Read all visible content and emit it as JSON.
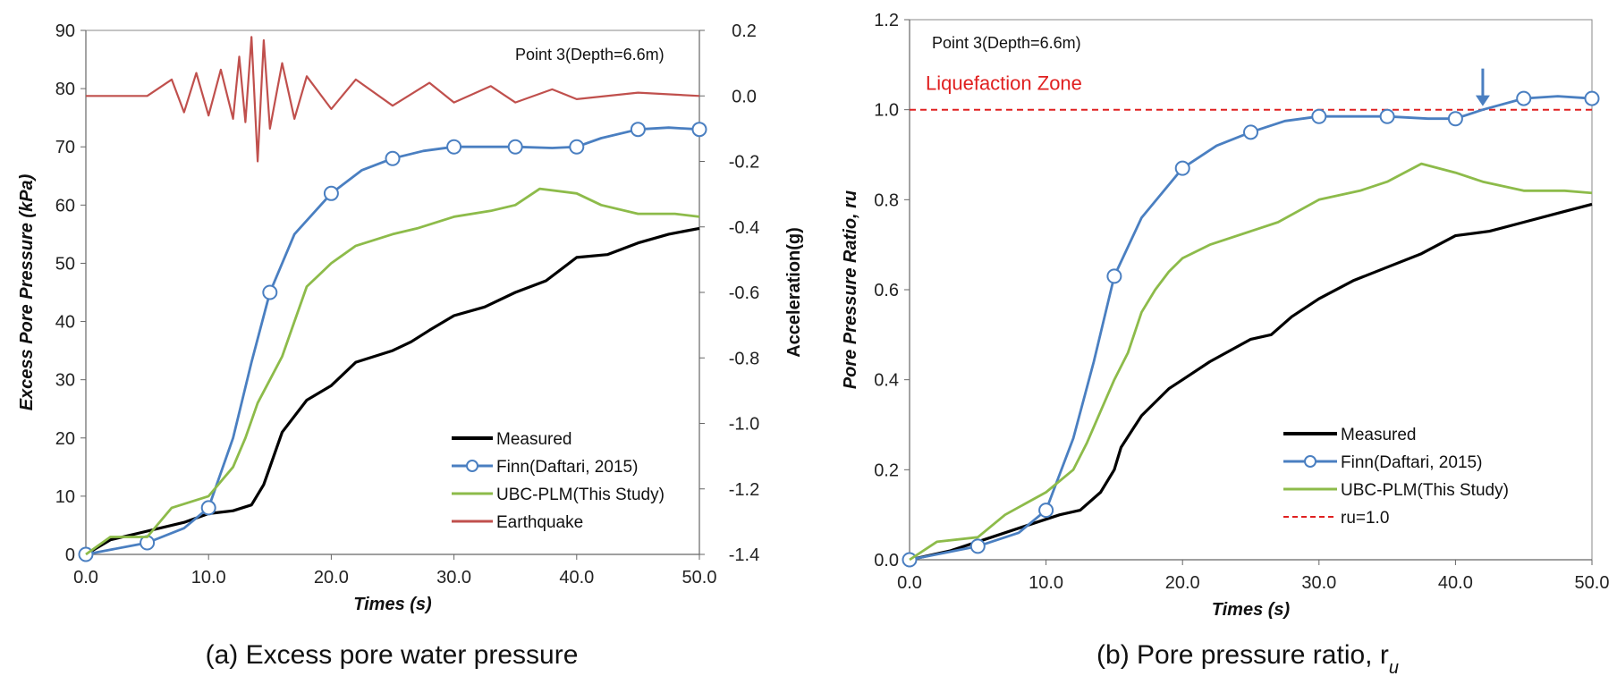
{
  "chart_data": [
    {
      "type": "line",
      "caption": "(a) Excess pore water pressure",
      "annotation": "Point 3(Depth=6.6m)",
      "xlabel": "Times (s)",
      "ylabel": "Excess Pore Pressure (kPa)",
      "y2label": "Acceleration(g)",
      "xlim": [
        0,
        50
      ],
      "ylim": [
        0,
        90
      ],
      "y2lim": [
        -1.4,
        0.2
      ],
      "x_ticks": [
        "0.0",
        "10.0",
        "20.0",
        "30.0",
        "40.0",
        "50.0"
      ],
      "y_ticks": [
        "0",
        "10",
        "20",
        "30",
        "40",
        "50",
        "60",
        "70",
        "80",
        "90"
      ],
      "y2_ticks": [
        "0.2",
        "0.0",
        "-0.2",
        "-0.4",
        "-0.6",
        "-0.8",
        "-1.0",
        "-1.2",
        "-1.4"
      ],
      "legend_position": "bottom-right",
      "series": [
        {
          "name": "Measured",
          "color": "#000000",
          "x": [
            0,
            2,
            5,
            8,
            10,
            12,
            13.5,
            14.5,
            15,
            16,
            18,
            20,
            22,
            25,
            26.5,
            28,
            30,
            32.5,
            35,
            37.5,
            40,
            42.5,
            45,
            47.5,
            50
          ],
          "y": [
            0,
            2.5,
            4,
            5.5,
            7,
            7.5,
            8.5,
            12,
            15,
            21,
            26.5,
            29,
            33,
            35,
            36.5,
            38.5,
            41,
            42.5,
            45,
            47,
            51,
            51.5,
            53.5,
            55,
            56
          ]
        },
        {
          "name": "Finn(Daftari, 2015)",
          "color": "#4a7fc1",
          "x": [
            0,
            5,
            8,
            10,
            12,
            13.5,
            15,
            17,
            20,
            22.5,
            25,
            27.5,
            30,
            35,
            38,
            40,
            42,
            45,
            47.5,
            50
          ],
          "y": [
            0,
            2,
            4.5,
            8,
            20,
            33,
            45,
            55,
            62,
            66,
            68,
            69.3,
            70,
            70,
            69.8,
            70,
            71.5,
            73,
            73.3,
            73
          ],
          "markers_x": [
            0,
            5,
            10,
            15,
            20,
            25,
            30,
            35,
            40,
            45,
            50
          ],
          "markers_y": [
            0,
            2,
            8,
            45,
            62,
            68,
            70,
            70,
            70,
            73,
            73
          ]
        },
        {
          "name": "UBC-PLM(This Study)",
          "color": "#8dbb4a",
          "x": [
            0,
            2,
            5,
            7,
            10,
            12,
            13,
            14,
            15,
            16,
            17,
            18,
            19,
            20,
            22,
            25,
            27,
            30,
            33,
            35,
            37,
            40,
            42,
            45,
            48,
            50
          ],
          "y": [
            0,
            3,
            3,
            8,
            10,
            15,
            20,
            26,
            30,
            34,
            40,
            46,
            48,
            50,
            53,
            55,
            56,
            58,
            59,
            60,
            62.8,
            62,
            60,
            58.5,
            58.5,
            58
          ]
        },
        {
          "name": "Earthquake",
          "color": "#c0504d",
          "axis": "y2",
          "x": [
            0,
            5,
            7,
            8,
            9,
            10,
            11,
            12,
            12.5,
            13,
            13.5,
            14,
            14.5,
            15,
            16,
            17,
            18,
            20,
            22,
            25,
            28,
            30,
            33,
            35,
            38,
            40,
            45,
            50
          ],
          "y": [
            0,
            0,
            0.05,
            -0.05,
            0.07,
            -0.06,
            0.08,
            -0.07,
            0.12,
            -0.08,
            0.18,
            -0.2,
            0.17,
            -0.1,
            0.1,
            -0.07,
            0.06,
            -0.04,
            0.05,
            -0.03,
            0.04,
            -0.02,
            0.03,
            -0.02,
            0.02,
            -0.01,
            0.01,
            0
          ]
        }
      ]
    },
    {
      "type": "line",
      "caption": "(b) Pore pressure ratio, r",
      "caption_sub": "u",
      "annotation": "Point 3(Depth=6.6m)",
      "zone_label": "Liquefaction Zone",
      "xlabel": "Times (s)",
      "ylabel": "Pore Pressure Ratio, ru",
      "xlim": [
        0,
        50
      ],
      "ylim": [
        0,
        1.2
      ],
      "x_ticks": [
        "0.0",
        "10.0",
        "20.0",
        "30.0",
        "40.0",
        "50.0"
      ],
      "y_ticks": [
        "0.0",
        "0.2",
        "0.4",
        "0.6",
        "0.8",
        "1.0",
        "1.2"
      ],
      "arrow_x": 42,
      "legend_position": "bottom-right",
      "series": [
        {
          "name": "Measured",
          "color": "#000000",
          "x": [
            0,
            3,
            6,
            9,
            11,
            12.5,
            14,
            15,
            15.5,
            17,
            19,
            20,
            22,
            25,
            26.5,
            28,
            30,
            32.5,
            35,
            37.5,
            40,
            42.5,
            45,
            47.5,
            50
          ],
          "y": [
            0,
            0.02,
            0.05,
            0.08,
            0.1,
            0.11,
            0.15,
            0.2,
            0.25,
            0.32,
            0.38,
            0.4,
            0.44,
            0.49,
            0.5,
            0.54,
            0.58,
            0.62,
            0.65,
            0.68,
            0.72,
            0.73,
            0.75,
            0.77,
            0.79
          ]
        },
        {
          "name": "Finn(Daftari, 2015)",
          "color": "#4a7fc1",
          "x": [
            0,
            5,
            8,
            10,
            12,
            13.5,
            15,
            17,
            20,
            22.5,
            25,
            27.5,
            30,
            35,
            38,
            40,
            42,
            45,
            47.5,
            50
          ],
          "y": [
            0,
            0.03,
            0.06,
            0.11,
            0.27,
            0.44,
            0.63,
            0.76,
            0.87,
            0.92,
            0.95,
            0.975,
            0.985,
            0.985,
            0.98,
            0.98,
            1.0,
            1.025,
            1.03,
            1.025
          ],
          "markers_x": [
            0,
            5,
            10,
            15,
            20,
            25,
            30,
            35,
            40,
            45,
            50
          ],
          "markers_y": [
            0,
            0.03,
            0.11,
            0.63,
            0.87,
            0.95,
            0.985,
            0.985,
            0.98,
            1.025,
            1.025
          ]
        },
        {
          "name": "UBC-PLM(This Study)",
          "color": "#8dbb4a",
          "x": [
            0,
            2,
            5,
            7,
            10,
            12,
            13,
            14,
            15,
            16,
            17,
            18,
            19,
            20,
            22,
            25,
            27,
            30,
            33,
            35,
            37.5,
            40,
            42,
            45,
            48,
            50
          ],
          "y": [
            0,
            0.04,
            0.05,
            0.1,
            0.15,
            0.2,
            0.26,
            0.33,
            0.4,
            0.46,
            0.55,
            0.6,
            0.64,
            0.67,
            0.7,
            0.73,
            0.75,
            0.8,
            0.82,
            0.84,
            0.88,
            0.86,
            0.84,
            0.82,
            0.82,
            0.815
          ]
        },
        {
          "name": "ru=1.0",
          "color": "#e02020",
          "dashed": true,
          "x": [
            0,
            50
          ],
          "y": [
            1.0,
            1.0
          ]
        }
      ]
    }
  ]
}
